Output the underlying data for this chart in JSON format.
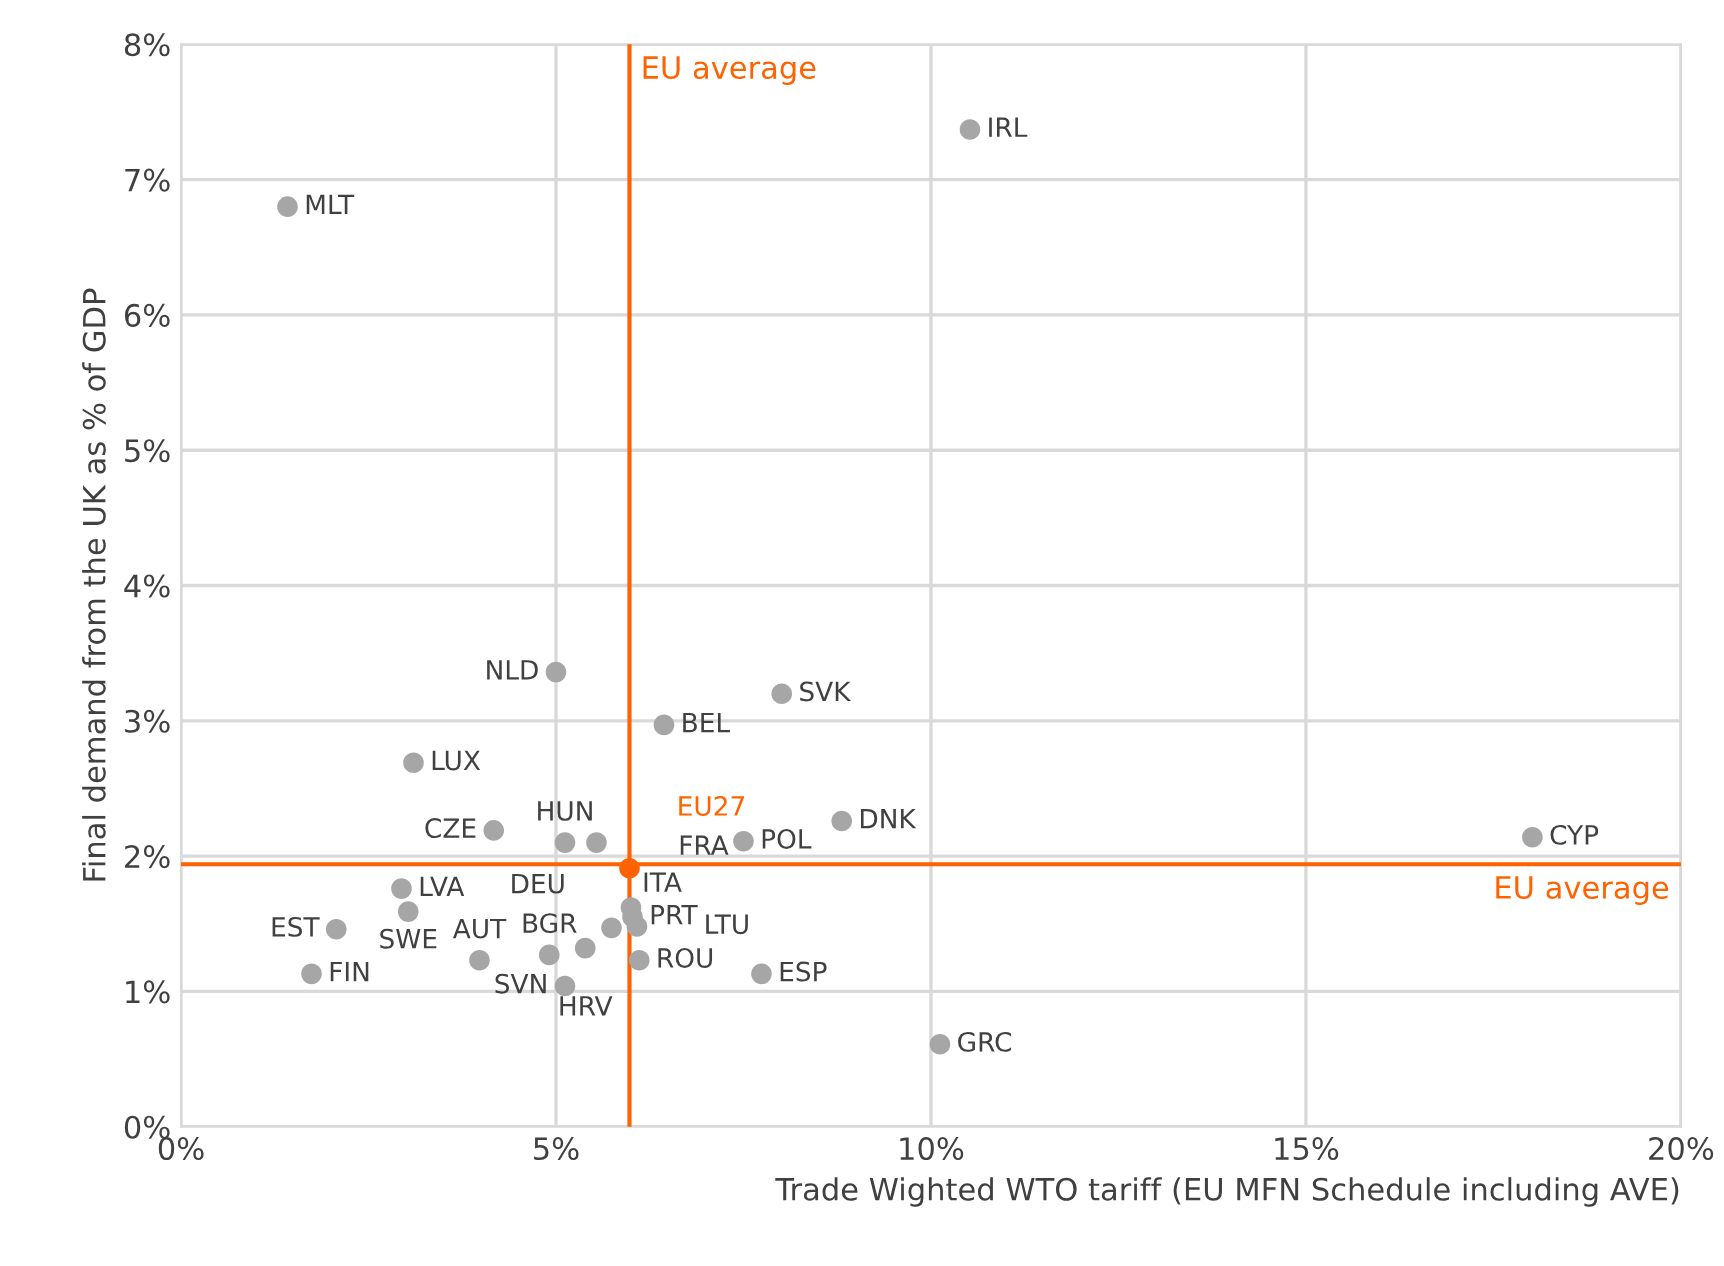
{
  "chart_data": {
    "type": "scatter",
    "xlabel": "Trade Wighted WTO tariff (EU MFN Schedule including AVE)",
    "ylabel": "Final demand from the UK as % of GDP",
    "xlim": [
      0,
      20
    ],
    "xticks": [
      {
        "value": 0,
        "label": "0%"
      },
      {
        "value": 5,
        "label": "5%"
      },
      {
        "value": 10,
        "label": "10%"
      },
      {
        "value": 15,
        "label": "15%"
      },
      {
        "value": 20,
        "label": "20%"
      }
    ],
    "ylim": [
      0,
      8
    ],
    "yticks": [
      {
        "value": 0,
        "label": "0%"
      },
      {
        "value": 1,
        "label": "1%"
      },
      {
        "value": 2,
        "label": "2%"
      },
      {
        "value": 3,
        "label": "3%"
      },
      {
        "value": 4,
        "label": "4%"
      },
      {
        "value": 5,
        "label": "5%"
      },
      {
        "value": 6,
        "label": "6%"
      },
      {
        "value": 7,
        "label": "7%"
      },
      {
        "value": 8,
        "label": "8%"
      }
    ],
    "grid": true,
    "marker": "circle",
    "series": [
      {
        "color": "#a6a6a6",
        "x": [
          10.52,
          1.42,
          5.0,
          8.01,
          6.44,
          3.1,
          4.17,
          5.12,
          5.54,
          7.5,
          8.81,
          2.94,
          3.03,
          2.07,
          1.74,
          3.98,
          4.91,
          5.12,
          5.39,
          6.11,
          5.74,
          6.0,
          6.02,
          6.08,
          7.74,
          10.12,
          18.02
        ],
        "values": [
          7.37,
          6.8,
          3.36,
          3.2,
          2.97,
          2.69,
          2.19,
          2.1,
          2.1,
          2.11,
          2.26,
          1.76,
          1.59,
          1.46,
          1.13,
          1.23,
          1.27,
          1.04,
          1.32,
          1.23,
          1.47,
          1.62,
          1.55,
          1.48,
          1.13,
          0.61,
          2.14
        ]
      },
      {
        "color": "#ff6200",
        "x": [
          5.98
        ],
        "values": [
          1.91
        ]
      }
    ],
    "ref_lines": [
      {
        "axis": "x",
        "value": 5.98,
        "label": "EU average",
        "color": "#ff6200"
      },
      {
        "axis": "y",
        "value": 1.94,
        "label": "EU average",
        "color": "#ff6200"
      }
    ],
    "annotations": [
      {
        "text": "IRL",
        "x": 10.52,
        "y": 7.37
      },
      {
        "text": "MLT",
        "x": 1.42,
        "y": 6.8
      },
      {
        "text": "NLD",
        "x": 5.0,
        "y": 3.36
      },
      {
        "text": "SVK",
        "x": 8.01,
        "y": 3.2
      },
      {
        "text": "BEL",
        "x": 6.44,
        "y": 2.97
      },
      {
        "text": "LUX",
        "x": 3.1,
        "y": 2.69
      },
      {
        "text": "CZE",
        "x": 4.17,
        "y": 2.19
      },
      {
        "text": "HUN",
        "x": 5.12,
        "y": 2.1
      },
      {
        "text": "DEU",
        "x": 5.54,
        "y": 2.1
      },
      {
        "text": "POL",
        "x": 7.5,
        "y": 2.11
      },
      {
        "text": "DNK",
        "x": 8.81,
        "y": 2.26
      },
      {
        "text": "LVA",
        "x": 2.94,
        "y": 1.76
      },
      {
        "text": "SWE",
        "x": 3.03,
        "y": 1.59
      },
      {
        "text": "EST",
        "x": 2.07,
        "y": 1.46
      },
      {
        "text": "FIN",
        "x": 1.74,
        "y": 1.13
      },
      {
        "text": "AUT",
        "x": 3.98,
        "y": 1.23
      },
      {
        "text": "BGR",
        "x": 4.91,
        "y": 1.27
      },
      {
        "text": "SVN",
        "x": 5.12,
        "y": 1.04
      },
      {
        "text": "HRV",
        "x": 5.39,
        "y": 1.32
      },
      {
        "text": "ROU",
        "x": 6.11,
        "y": 1.23
      },
      {
        "text": "ITA",
        "x": 5.74,
        "y": 1.47
      },
      {
        "text": "FRA",
        "x": 6.0,
        "y": 1.62
      },
      {
        "text": "PRT",
        "x": 6.02,
        "y": 1.55
      },
      {
        "text": "LTU",
        "x": 6.08,
        "y": 1.48
      },
      {
        "text": "ESP",
        "x": 7.74,
        "y": 1.13
      },
      {
        "text": "GRC",
        "x": 10.12,
        "y": 0.61
      },
      {
        "text": "CYP",
        "x": 18.02,
        "y": 2.14
      },
      {
        "text": "EU27",
        "x": 5.98,
        "y": 1.91
      }
    ]
  }
}
